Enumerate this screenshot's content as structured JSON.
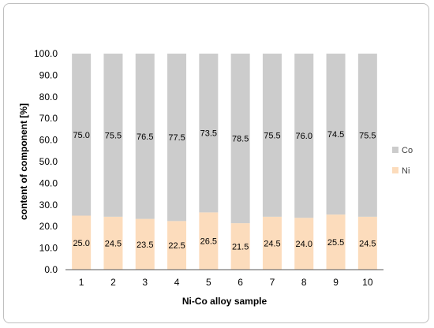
{
  "chart_data": {
    "type": "bar",
    "stacked": true,
    "percent_stacked": true,
    "categories": [
      "1",
      "2",
      "3",
      "4",
      "5",
      "6",
      "7",
      "8",
      "9",
      "10"
    ],
    "series": [
      {
        "name": "Ni",
        "color": "#fcdcbc",
        "values": [
          25.0,
          24.5,
          23.5,
          22.5,
          26.5,
          21.5,
          24.5,
          24.0,
          25.5,
          24.5
        ],
        "labels": [
          "25.0",
          "24.5",
          "23.5",
          "22.5",
          "26.5",
          "21.5",
          "24.5",
          "24.0",
          "25.5",
          "24.5"
        ]
      },
      {
        "name": "Co",
        "color": "#cccccc",
        "values": [
          75.0,
          75.5,
          76.5,
          77.5,
          73.5,
          78.5,
          75.5,
          76.0,
          74.5,
          75.5
        ],
        "labels": [
          "75.0",
          "75.5",
          "76.5",
          "77.5",
          "73.5",
          "78.5",
          "75.5",
          "76.0",
          "74.5",
          "75.5"
        ]
      }
    ],
    "xlabel": "Ni-Co alloy sample",
    "ylabel": "content of component [%]",
    "ylim": [
      0,
      100
    ],
    "y_ticks": [
      "0.0",
      "10.0",
      "20.0",
      "30.0",
      "40.0",
      "50.0",
      "60.0",
      "70.0",
      "80.0",
      "90.0",
      "100.0"
    ],
    "legend": {
      "position": "right",
      "order": [
        "Co",
        "Ni"
      ]
    },
    "grid": false
  }
}
